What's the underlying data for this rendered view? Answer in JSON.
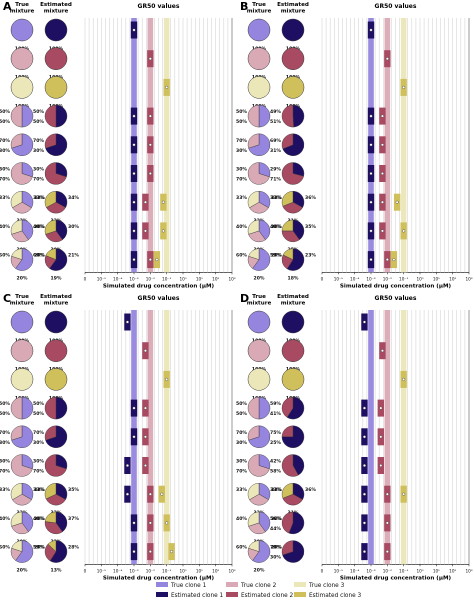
{
  "colors": {
    "true_clone_1": "#9585de",
    "estimated_clone_1": "#1f0f63",
    "true_clone_2": "#d9aab6",
    "estimated_clone_2": "#a84a62",
    "true_clone_3": "#ece7b8",
    "estimated_clone_3": "#cfc05c",
    "grid": "#cccccc"
  },
  "header": {
    "true_mixture": "True\nmixture",
    "estimated_mixture": "Estimated\nmixture",
    "gr50_title": "GR50 values"
  },
  "axis": {
    "xlabel": "Simulated drug concentration (μM)",
    "scale": "log",
    "tick_exponents": [
      -6,
      -5,
      -4,
      -3,
      -2,
      -1,
      0,
      1,
      2,
      3
    ],
    "tick_labels": [
      "0",
      "10⁻⁵",
      "10⁻⁴",
      "10⁻³",
      "10⁻²",
      "10⁻¹",
      "10⁰",
      "10¹",
      "10²",
      "10³"
    ],
    "grid": "vertical"
  },
  "legend": {
    "items": [
      {
        "label": "True clone 1",
        "color_key": "true_clone_1"
      },
      {
        "label": "True clone 2",
        "color_key": "true_clone_2"
      },
      {
        "label": "True clone 3",
        "color_key": "true_clone_3"
      },
      {
        "label": "Estimated clone 1",
        "color_key": "estimated_clone_1"
      },
      {
        "label": "Estimated clone 2",
        "color_key": "estimated_clone_2"
      },
      {
        "label": "Estimated clone 3",
        "color_key": "estimated_clone_3"
      }
    ],
    "placement": "bottom-right"
  },
  "chart_data": [
    {
      "panel": "A",
      "type": "bar",
      "true_gr50_log10": [
        -3,
        -2,
        -1
      ],
      "rows": [
        {
          "true": [
            100,
            0,
            0
          ],
          "est": [
            100,
            0,
            0
          ],
          "true_labels": [
            "100%"
          ],
          "est_labels": [
            "100%"
          ],
          "est_gr50_log10": [
            -3,
            null,
            null
          ]
        },
        {
          "true": [
            0,
            100,
            0
          ],
          "est": [
            0,
            100,
            0
          ],
          "true_labels": [
            "100%"
          ],
          "est_labels": [
            "100%"
          ],
          "est_gr50_log10": [
            null,
            -2,
            null
          ]
        },
        {
          "true": [
            0,
            0,
            100
          ],
          "est": [
            0,
            0,
            100
          ],
          "true_labels": [
            "100%"
          ],
          "est_labels": [
            "100%"
          ],
          "est_gr50_log10": [
            null,
            null,
            -1
          ]
        },
        {
          "true": [
            50,
            50,
            0
          ],
          "est": [
            50,
            50,
            0
          ],
          "true_labels": [
            "50%",
            "50%"
          ],
          "est_labels": [
            "50%",
            "50%"
          ],
          "est_gr50_log10": [
            -3,
            -2,
            null
          ]
        },
        {
          "true": [
            70,
            30,
            0
          ],
          "est": [
            70,
            30,
            0
          ],
          "true_labels": [
            "70%",
            "30%"
          ],
          "est_labels": [
            "70%",
            "30%"
          ],
          "est_gr50_log10": [
            -3,
            -2,
            null
          ]
        },
        {
          "true": [
            30,
            70,
            0
          ],
          "est": [
            30,
            70,
            0
          ],
          "true_labels": [
            "30%",
            "70%"
          ],
          "est_labels": [
            "30%",
            "70%"
          ],
          "est_gr50_log10": [
            -3,
            -2,
            null
          ]
        },
        {
          "true": [
            33,
            33,
            33
          ],
          "est": [
            33,
            34,
            33
          ],
          "true_labels": [
            "33%",
            "33%",
            "33%"
          ],
          "est_labels": [
            "33%",
            "34%",
            "33%"
          ],
          "est_gr50_log10": [
            -3,
            -2.3,
            -1.2
          ]
        },
        {
          "true": [
            40,
            30,
            30
          ],
          "est": [
            40,
            30,
            30
          ],
          "true_labels": [
            "40%",
            "30%",
            "30%"
          ],
          "est_labels": [
            "40%",
            "30%",
            "30%"
          ],
          "est_gr50_log10": [
            -3,
            -2.3,
            -1.2
          ]
        },
        {
          "true": [
            60,
            20,
            20
          ],
          "est": [
            60,
            21,
            19
          ],
          "true_labels": [
            "60%",
            "20%",
            "20%"
          ],
          "est_labels": [
            "60%",
            "21%",
            "19%"
          ],
          "est_gr50_log10": [
            -3,
            -2,
            -1.6
          ]
        }
      ]
    },
    {
      "panel": "B",
      "type": "bar",
      "true_gr50_log10": [
        -3,
        -2,
        -1
      ],
      "rows": [
        {
          "true": [
            100,
            0,
            0
          ],
          "est": [
            100,
            0,
            0
          ],
          "true_labels": [
            "100%"
          ],
          "est_labels": [
            "100%"
          ],
          "est_gr50_log10": [
            -3,
            null,
            null
          ]
        },
        {
          "true": [
            0,
            100,
            0
          ],
          "est": [
            0,
            100,
            0
          ],
          "true_labels": [
            "100%"
          ],
          "est_labels": [
            "100%"
          ],
          "est_gr50_log10": [
            null,
            -2,
            null
          ]
        },
        {
          "true": [
            0,
            0,
            100
          ],
          "est": [
            0,
            0,
            100
          ],
          "true_labels": [
            "100%"
          ],
          "est_labels": [
            "100%"
          ],
          "est_gr50_log10": [
            null,
            null,
            -1
          ]
        },
        {
          "true": [
            50,
            50,
            0
          ],
          "est": [
            49,
            51,
            0
          ],
          "true_labels": [
            "50%",
            "50%"
          ],
          "est_labels": [
            "49%",
            "51%"
          ],
          "est_gr50_log10": [
            -3,
            -2.3,
            null
          ]
        },
        {
          "true": [
            70,
            30,
            0
          ],
          "est": [
            69,
            31,
            0
          ],
          "true_labels": [
            "70%",
            "30%"
          ],
          "est_labels": [
            "69%",
            "31%"
          ],
          "est_gr50_log10": [
            -3,
            -2.3,
            null
          ]
        },
        {
          "true": [
            30,
            70,
            0
          ],
          "est": [
            29,
            71,
            0
          ],
          "true_labels": [
            "30%",
            "70%"
          ],
          "est_labels": [
            "29%",
            "71%"
          ],
          "est_gr50_log10": [
            -3,
            -2.3,
            null
          ]
        },
        {
          "true": [
            33,
            33,
            33
          ],
          "est": [
            33,
            36,
            31
          ],
          "true_labels": [
            "33%",
            "33%",
            "33%"
          ],
          "est_labels": [
            "33%",
            "36%",
            "31%"
          ],
          "est_gr50_log10": [
            -3,
            -2.3,
            -1.4
          ]
        },
        {
          "true": [
            40,
            30,
            30
          ],
          "est": [
            40,
            35,
            25
          ],
          "true_labels": [
            "40%",
            "30%",
            "30%"
          ],
          "est_labels": [
            "40%",
            "35%",
            "25%"
          ],
          "est_gr50_log10": [
            -3,
            -2.3,
            -1
          ]
        },
        {
          "true": [
            60,
            20,
            20
          ],
          "est": [
            59,
            23,
            18
          ],
          "true_labels": [
            "60%",
            "20%",
            "20%"
          ],
          "est_labels": [
            "59%",
            "23%",
            "18%"
          ],
          "est_gr50_log10": [
            -3,
            -2,
            -1.6
          ]
        }
      ]
    },
    {
      "panel": "C",
      "type": "bar",
      "true_gr50_log10": [
        -3,
        -2,
        -1
      ],
      "rows": [
        {
          "true": [
            100,
            0,
            0
          ],
          "est": [
            100,
            0,
            0
          ],
          "true_labels": [
            "100%"
          ],
          "est_labels": [
            "100%"
          ],
          "est_gr50_log10": [
            -3.4,
            null,
            null
          ]
        },
        {
          "true": [
            0,
            100,
            0
          ],
          "est": [
            0,
            100,
            0
          ],
          "true_labels": [
            "100%"
          ],
          "est_labels": [
            "100%"
          ],
          "est_gr50_log10": [
            null,
            -2.3,
            null
          ]
        },
        {
          "true": [
            0,
            0,
            100
          ],
          "est": [
            0,
            0,
            100
          ],
          "true_labels": [
            "100%"
          ],
          "est_labels": [
            "100%"
          ],
          "est_gr50_log10": [
            null,
            null,
            -1
          ]
        },
        {
          "true": [
            50,
            50,
            0
          ],
          "est": [
            50,
            50,
            0
          ],
          "true_labels": [
            "50%",
            "50%"
          ],
          "est_labels": [
            "50%",
            "50%"
          ],
          "est_gr50_log10": [
            -3,
            -2.3,
            null
          ]
        },
        {
          "true": [
            70,
            30,
            0
          ],
          "est": [
            70,
            30,
            0
          ],
          "true_labels": [
            "70%",
            "30%"
          ],
          "est_labels": [
            "70%",
            "30%"
          ],
          "est_gr50_log10": [
            -3,
            -2.3,
            null
          ]
        },
        {
          "true": [
            30,
            70,
            0
          ],
          "est": [
            30,
            70,
            0
          ],
          "true_labels": [
            "30%",
            "70%"
          ],
          "est_labels": [
            "30%",
            "70%"
          ],
          "est_gr50_log10": [
            -3.4,
            -2.3,
            null
          ]
        },
        {
          "true": [
            33,
            33,
            33
          ],
          "est": [
            33,
            35,
            32
          ],
          "true_labels": [
            "33%",
            "33%",
            "33%"
          ],
          "est_labels": [
            "33%",
            "35%",
            "32%"
          ],
          "est_gr50_log10": [
            -3.4,
            -2,
            -1.3
          ]
        },
        {
          "true": [
            40,
            30,
            30
          ],
          "est": [
            40,
            37,
            23
          ],
          "true_labels": [
            "40%",
            "30%",
            "30%"
          ],
          "est_labels": [
            "40%",
            "37%",
            "23%"
          ],
          "est_gr50_log10": [
            -3,
            -2,
            -1
          ]
        },
        {
          "true": [
            60,
            20,
            20
          ],
          "est": [
            59,
            28,
            13
          ],
          "true_labels": [
            "60%",
            "20%",
            "20%"
          ],
          "est_labels": [
            "59%",
            "28%",
            "13%"
          ],
          "est_gr50_log10": [
            -3,
            -2,
            -0.7
          ]
        }
      ]
    },
    {
      "panel": "D",
      "type": "bar",
      "true_gr50_log10": [
        -3,
        -2,
        -1
      ],
      "rows": [
        {
          "true": [
            100,
            0,
            0
          ],
          "est": [
            100,
            0,
            0
          ],
          "true_labels": [
            "100%"
          ],
          "est_labels": [
            "100%"
          ],
          "est_gr50_log10": [
            -3.4,
            null,
            null
          ]
        },
        {
          "true": [
            0,
            100,
            0
          ],
          "est": [
            0,
            100,
            0
          ],
          "true_labels": [
            "100%"
          ],
          "est_labels": [
            "100%"
          ],
          "est_gr50_log10": [
            null,
            -2.3,
            null
          ]
        },
        {
          "true": [
            0,
            0,
            100
          ],
          "est": [
            0,
            0,
            100
          ],
          "true_labels": [
            "100%"
          ],
          "est_labels": [
            "100%"
          ],
          "est_gr50_log10": [
            null,
            null,
            -1
          ]
        },
        {
          "true": [
            50,
            50,
            0
          ],
          "est": [
            59,
            41,
            0
          ],
          "true_labels": [
            "50%",
            "50%"
          ],
          "est_labels": [
            "59%",
            "41%"
          ],
          "est_gr50_log10": [
            -3.4,
            -2.4,
            null
          ]
        },
        {
          "true": [
            70,
            30,
            0
          ],
          "est": [
            75,
            25,
            0
          ],
          "true_labels": [
            "70%",
            "30%"
          ],
          "est_labels": [
            "75%",
            "25%"
          ],
          "est_gr50_log10": [
            -3.4,
            -2.4,
            null
          ]
        },
        {
          "true": [
            30,
            70,
            0
          ],
          "est": [
            42,
            58,
            0
          ],
          "true_labels": [
            "30%",
            "70%"
          ],
          "est_labels": [
            "42%",
            "58%"
          ],
          "est_gr50_log10": [
            -3.4,
            -2.4,
            null
          ]
        },
        {
          "true": [
            33,
            33,
            33
          ],
          "est": [
            33,
            36,
            31
          ],
          "true_labels": [
            "33%",
            "33%",
            "33%"
          ],
          "est_labels": [
            "33%",
            "36%",
            "31%"
          ],
          "est_gr50_log10": [
            -3.4,
            -2,
            -1
          ]
        },
        {
          "true": [
            40,
            30,
            30
          ],
          "est": [
            56,
            44,
            0
          ],
          "true_labels": [
            "40%",
            "30%",
            "30%"
          ],
          "est_labels": [
            "56%",
            "44%"
          ],
          "est_gr50_log10": [
            -3.4,
            -2,
            null
          ]
        },
        {
          "true": [
            60,
            20,
            20
          ],
          "est": [
            70,
            30,
            0
          ],
          "true_labels": [
            "60%",
            "20%",
            "20%"
          ],
          "est_labels": [
            "70%",
            "30%"
          ],
          "est_gr50_log10": [
            -3.4,
            -2,
            null
          ]
        }
      ]
    }
  ]
}
